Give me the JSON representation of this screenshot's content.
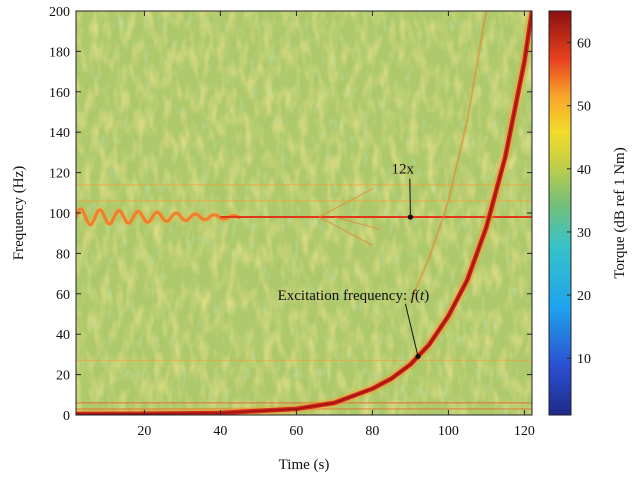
{
  "chart_data": {
    "type": "heatmap",
    "title": "",
    "xlabel": "Time (s)",
    "ylabel": "Frequency (Hz)",
    "xlim": [
      2,
      122
    ],
    "ylim": [
      0,
      200
    ],
    "xticks": [
      20,
      40,
      60,
      80,
      100,
      120
    ],
    "yticks": [
      0,
      20,
      40,
      60,
      80,
      100,
      120,
      140,
      160,
      180,
      200
    ],
    "colorbar": {
      "label": "Torque (dB ref 1 Nm)",
      "range": [
        1,
        65
      ],
      "ticks": [
        10,
        20,
        30,
        40,
        50,
        60
      ],
      "colormap": "jet",
      "background_level": 37
    },
    "features": [
      {
        "name": "Excitation frequency: f(t)",
        "shape": "exponential sweep",
        "level_db": 60,
        "points": [
          [
            2,
            0.5
          ],
          [
            20,
            0.6
          ],
          [
            40,
            1
          ],
          [
            60,
            3
          ],
          [
            70,
            6
          ],
          [
            80,
            13
          ],
          [
            85,
            18
          ],
          [
            90,
            25
          ],
          [
            95,
            35
          ],
          [
            100,
            49
          ],
          [
            105,
            67
          ],
          [
            110,
            93
          ],
          [
            115,
            128
          ],
          [
            120,
            175
          ],
          [
            122,
            200
          ]
        ]
      },
      {
        "name": "12x",
        "shape": "horizontal line",
        "level_db": 55,
        "frequency_hz": 98,
        "t_start": 40,
        "t_end": 122
      },
      {
        "name": "oscillation",
        "shape": "wavy band",
        "level_db": 57,
        "center_hz": 98,
        "t_start": 2,
        "t_end": 45
      }
    ],
    "annotations": [
      {
        "text": "12x",
        "label_at": [
          93,
          120
        ],
        "point_at": [
          90,
          98
        ]
      },
      {
        "text": "Excitation frequency: ",
        "func": "f",
        "arg": "t",
        "label_at": [
          65,
          59
        ],
        "point_at": [
          92,
          29
        ]
      }
    ]
  }
}
